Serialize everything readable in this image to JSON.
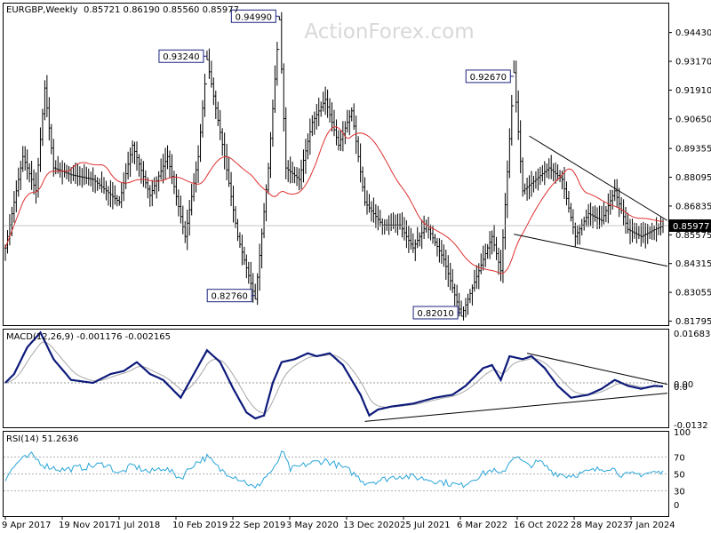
{
  "header": {
    "symbol": "EURGBP,Weekly",
    "ohlc": "0.85721 0.86190 0.85560 0.85977"
  },
  "watermark": "ActionForex.com",
  "colors": {
    "candle": "#000000",
    "ma": "#e03030",
    "macd": "#0d1a7a",
    "signal": "#a8a8a8",
    "rsi": "#2aa6d8",
    "trendline": "#000000",
    "box": "#1a237e",
    "price_label_bg": "#000000",
    "price_label_fg": "#ffffff"
  },
  "chart_data": [
    {
      "type": "candlestick",
      "panel": "price",
      "ylim": [
        0.8162,
        0.957
      ],
      "yticks": [
        "0.94430",
        "0.93170",
        "0.91910",
        "0.90650",
        "0.89355",
        "0.88095",
        "0.86835",
        "0.85575",
        "0.84315",
        "0.83055",
        "0.81795"
      ],
      "current_price": "0.85977",
      "annotations": [
        {
          "label": "0.93240",
          "week": 92,
          "value": 0.9324
        },
        {
          "label": "0.94990",
          "week": 125,
          "value": 0.9499
        },
        {
          "label": "0.82760",
          "week": 114,
          "value": 0.8276
        },
        {
          "label": "0.82010",
          "week": 208,
          "value": 0.8201
        },
        {
          "label": "0.92670",
          "week": 232,
          "value": 0.9267
        }
      ],
      "moving_average": {
        "window": 30
      },
      "anchors": [
        [
          0,
          0.85
        ],
        [
          8,
          0.89
        ],
        [
          14,
          0.875
        ],
        [
          18,
          0.92
        ],
        [
          22,
          0.885
        ],
        [
          30,
          0.882
        ],
        [
          40,
          0.88
        ],
        [
          52,
          0.87
        ],
        [
          58,
          0.895
        ],
        [
          66,
          0.873
        ],
        [
          74,
          0.89
        ],
        [
          82,
          0.855
        ],
        [
          88,
          0.89
        ],
        [
          92,
          0.9324
        ],
        [
          100,
          0.89
        ],
        [
          106,
          0.855
        ],
        [
          114,
          0.8276
        ],
        [
          120,
          0.885
        ],
        [
          125,
          0.9499
        ],
        [
          128,
          0.885
        ],
        [
          134,
          0.88
        ],
        [
          140,
          0.905
        ],
        [
          146,
          0.915
        ],
        [
          152,
          0.895
        ],
        [
          158,
          0.91
        ],
        [
          164,
          0.87
        ],
        [
          172,
          0.86
        ],
        [
          180,
          0.86
        ],
        [
          186,
          0.85
        ],
        [
          192,
          0.86
        ],
        [
          200,
          0.845
        ],
        [
          208,
          0.8201
        ],
        [
          214,
          0.835
        ],
        [
          222,
          0.855
        ],
        [
          226,
          0.84
        ],
        [
          232,
          0.9267
        ],
        [
          236,
          0.875
        ],
        [
          242,
          0.88
        ],
        [
          248,
          0.885
        ],
        [
          254,
          0.88
        ],
        [
          260,
          0.855
        ],
        [
          266,
          0.865
        ],
        [
          272,
          0.862
        ],
        [
          278,
          0.875
        ],
        [
          284,
          0.858
        ],
        [
          290,
          0.855
        ],
        [
          296,
          0.858
        ],
        [
          300,
          0.8598
        ]
      ],
      "trendlines": [
        {
          "from": [
            239,
            0.899
          ],
          "to": [
            302,
            0.862
          ]
        },
        {
          "from": [
            232,
            0.856
          ],
          "to": [
            302,
            0.842
          ]
        }
      ]
    },
    {
      "type": "line",
      "panel": "macd",
      "label": "MACD(12,26,9) -0.001176 -0.002165",
      "ylim": [
        -0.015,
        0.018
      ],
      "yticks": [
        "0.016838",
        "0.00",
        "0.0",
        "-0.0132"
      ],
      "series": [
        {
          "name": "macd",
          "anchors": [
            [
              0,
              0.0
            ],
            [
              4,
              0.003
            ],
            [
              10,
              0.012
            ],
            [
              16,
              0.017
            ],
            [
              22,
              0.008
            ],
            [
              30,
              0.001
            ],
            [
              40,
              0.0
            ],
            [
              48,
              0.003
            ],
            [
              54,
              0.004
            ],
            [
              60,
              0.007
            ],
            [
              66,
              0.003
            ],
            [
              72,
              0.001
            ],
            [
              80,
              -0.005
            ],
            [
              86,
              0.003
            ],
            [
              92,
              0.011
            ],
            [
              98,
              0.007
            ],
            [
              104,
              -0.002
            ],
            [
              110,
              -0.01
            ],
            [
              114,
              -0.012
            ],
            [
              118,
              -0.011
            ],
            [
              122,
              0.0
            ],
            [
              126,
              0.007
            ],
            [
              132,
              0.008
            ],
            [
              138,
              0.01
            ],
            [
              142,
              0.009
            ],
            [
              148,
              0.01
            ],
            [
              154,
              0.006
            ],
            [
              158,
              0.001
            ],
            [
              162,
              -0.004
            ],
            [
              166,
              -0.011
            ],
            [
              170,
              -0.009
            ],
            [
              176,
              -0.008
            ],
            [
              186,
              -0.007
            ],
            [
              196,
              -0.005
            ],
            [
              204,
              -0.004
            ],
            [
              210,
              -0.001
            ],
            [
              218,
              0.005
            ],
            [
              222,
              0.006
            ],
            [
              226,
              0.001
            ],
            [
              230,
              0.009
            ],
            [
              236,
              0.008
            ],
            [
              240,
              0.009
            ],
            [
              246,
              0.005
            ],
            [
              252,
              -0.001
            ],
            [
              258,
              -0.005
            ],
            [
              266,
              -0.004
            ],
            [
              272,
              -0.002
            ],
            [
              278,
              0.001
            ],
            [
              284,
              -0.001
            ],
            [
              290,
              -0.002
            ],
            [
              296,
              -0.001
            ],
            [
              300,
              -0.0012
            ]
          ]
        },
        {
          "name": "signal",
          "smoothing": 9
        }
      ],
      "trendlines": [
        {
          "from": [
            164,
            -0.013
          ],
          "to": [
            302,
            -0.0035
          ]
        },
        {
          "from": [
            238,
            0.01
          ],
          "to": [
            302,
            -0.0005
          ]
        }
      ]
    },
    {
      "type": "line",
      "panel": "rsi",
      "label": "RSI(14) 51.2636",
      "ylim": [
        0,
        100
      ],
      "yticks": [
        "100",
        "70",
        "50",
        "30",
        "0"
      ],
      "series": [
        {
          "name": "rsi",
          "anchors": [
            [
              0,
              45
            ],
            [
              6,
              65
            ],
            [
              12,
              72
            ],
            [
              18,
              60
            ],
            [
              26,
              55
            ],
            [
              36,
              58
            ],
            [
              46,
              62
            ],
            [
              52,
              50
            ],
            [
              58,
              60
            ],
            [
              66,
              52
            ],
            [
              72,
              58
            ],
            [
              80,
              45
            ],
            [
              86,
              62
            ],
            [
              92,
              70
            ],
            [
              98,
              55
            ],
            [
              104,
              48
            ],
            [
              110,
              40
            ],
            [
              114,
              32
            ],
            [
              118,
              45
            ],
            [
              124,
              60
            ],
            [
              126,
              78
            ],
            [
              130,
              55
            ],
            [
              138,
              62
            ],
            [
              146,
              66
            ],
            [
              152,
              60
            ],
            [
              158,
              52
            ],
            [
              164,
              40
            ],
            [
              170,
              42
            ],
            [
              180,
              48
            ],
            [
              190,
              45
            ],
            [
              200,
              40
            ],
            [
              208,
              36
            ],
            [
              214,
              45
            ],
            [
              222,
              55
            ],
            [
              226,
              48
            ],
            [
              232,
              72
            ],
            [
              238,
              60
            ],
            [
              244,
              64
            ],
            [
              250,
              52
            ],
            [
              256,
              48
            ],
            [
              262,
              50
            ],
            [
              270,
              55
            ],
            [
              276,
              58
            ],
            [
              282,
              48
            ],
            [
              290,
              50
            ],
            [
              296,
              52
            ],
            [
              300,
              51
            ]
          ]
        }
      ]
    }
  ],
  "x_axis": {
    "ticks": [
      {
        "label": "9 Apr 2017",
        "week": 0
      },
      {
        "label": "19 Nov 2017",
        "week": 32
      },
      {
        "label": "1 Jul 2018",
        "week": 64
      },
      {
        "label": "10 Feb 2019",
        "week": 96
      },
      {
        "label": "22 Sep 2019",
        "week": 128
      },
      {
        "label": "3 May 2020",
        "week": 160
      },
      {
        "label": "13 Dec 2020",
        "week": 192
      },
      {
        "label": "25 Jul 2021",
        "week": 224
      },
      {
        "label": "6 Mar 2022",
        "week": 256
      },
      {
        "label": "16 Oct 2022",
        "week": 288
      },
      {
        "label": "28 May 2023",
        "week": 320
      },
      {
        "label": "7 Jan 2024",
        "week": 352
      }
    ]
  }
}
